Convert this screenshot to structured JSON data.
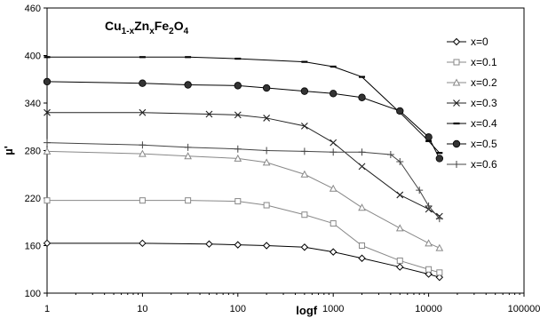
{
  "chart_data": {
    "type": "line",
    "title": {
      "base": "Cu",
      "parts": [
        {
          "text": "Cu",
          "sub": false
        },
        {
          "text": "1-x",
          "sub": true
        },
        {
          "text": "Zn",
          "sub": false
        },
        {
          "text": "x",
          "sub": true
        },
        {
          "text": "Fe",
          "sub": false
        },
        {
          "text": "2",
          "sub": true
        },
        {
          "text": "O",
          "sub": false
        },
        {
          "text": "4",
          "sub": true
        }
      ]
    },
    "xlabel": "logf",
    "ylabel": "µ'",
    "x_scale": "log",
    "xlim": [
      1,
      100000
    ],
    "ylim": [
      100,
      460
    ],
    "x_ticks": [
      "1",
      "10",
      "100",
      "1000",
      "10000",
      "100000"
    ],
    "y_ticks": [
      "100",
      "160",
      "220",
      "280",
      "340",
      "400",
      "460"
    ],
    "grid": false,
    "legend_position": "right",
    "series": [
      {
        "name": "x=0",
        "marker": "diamond",
        "points": [
          [
            1,
            163
          ],
          [
            10,
            163
          ],
          [
            50,
            162
          ],
          [
            100,
            161
          ],
          [
            200,
            160
          ],
          [
            500,
            158
          ],
          [
            1000,
            152
          ],
          [
            2000,
            144
          ],
          [
            5000,
            133
          ],
          [
            10000,
            124
          ],
          [
            13000,
            120
          ]
        ]
      },
      {
        "name": "x=0.1",
        "marker": "square",
        "points": [
          [
            1,
            217
          ],
          [
            10,
            217
          ],
          [
            30,
            217
          ],
          [
            100,
            216
          ],
          [
            200,
            211
          ],
          [
            500,
            199
          ],
          [
            1000,
            188
          ],
          [
            2000,
            160
          ],
          [
            5000,
            141
          ],
          [
            10000,
            130
          ],
          [
            13000,
            126
          ]
        ]
      },
      {
        "name": "x=0.2",
        "marker": "triangle",
        "points": [
          [
            1,
            279
          ],
          [
            10,
            276
          ],
          [
            30,
            273
          ],
          [
            100,
            270
          ],
          [
            200,
            265
          ],
          [
            500,
            250
          ],
          [
            1000,
            232
          ],
          [
            2000,
            208
          ],
          [
            5000,
            182
          ],
          [
            10000,
            163
          ],
          [
            13000,
            157
          ]
        ]
      },
      {
        "name": "x=0.3",
        "marker": "x",
        "points": [
          [
            1,
            328
          ],
          [
            10,
            328
          ],
          [
            50,
            326
          ],
          [
            100,
            325
          ],
          [
            200,
            321
          ],
          [
            500,
            311
          ],
          [
            1000,
            290
          ],
          [
            2000,
            260
          ],
          [
            5000,
            224
          ],
          [
            10000,
            206
          ],
          [
            13000,
            197
          ]
        ]
      },
      {
        "name": "x=0.4",
        "marker": "dash",
        "points": [
          [
            1,
            398
          ],
          [
            10,
            398
          ],
          [
            30,
            398
          ],
          [
            100,
            396
          ],
          [
            500,
            392
          ],
          [
            1000,
            386
          ],
          [
            2000,
            373
          ],
          [
            5000,
            328
          ],
          [
            10000,
            292
          ],
          [
            13000,
            277
          ]
        ]
      },
      {
        "name": "x=0.5",
        "marker": "circle",
        "points": [
          [
            1,
            367
          ],
          [
            10,
            365
          ],
          [
            30,
            363
          ],
          [
            100,
            362
          ],
          [
            200,
            359
          ],
          [
            500,
            355
          ],
          [
            1000,
            352
          ],
          [
            2000,
            347
          ],
          [
            5000,
            330
          ],
          [
            10000,
            297
          ],
          [
            13000,
            270
          ]
        ]
      },
      {
        "name": "x=0.6",
        "marker": "plus",
        "points": [
          [
            1,
            290
          ],
          [
            10,
            287
          ],
          [
            30,
            284
          ],
          [
            100,
            282
          ],
          [
            200,
            280
          ],
          [
            500,
            279
          ],
          [
            1000,
            278
          ],
          [
            2000,
            278
          ],
          [
            4000,
            275
          ],
          [
            5000,
            266
          ],
          [
            8000,
            230
          ],
          [
            10000,
            210
          ],
          [
            13000,
            194
          ]
        ]
      }
    ]
  }
}
